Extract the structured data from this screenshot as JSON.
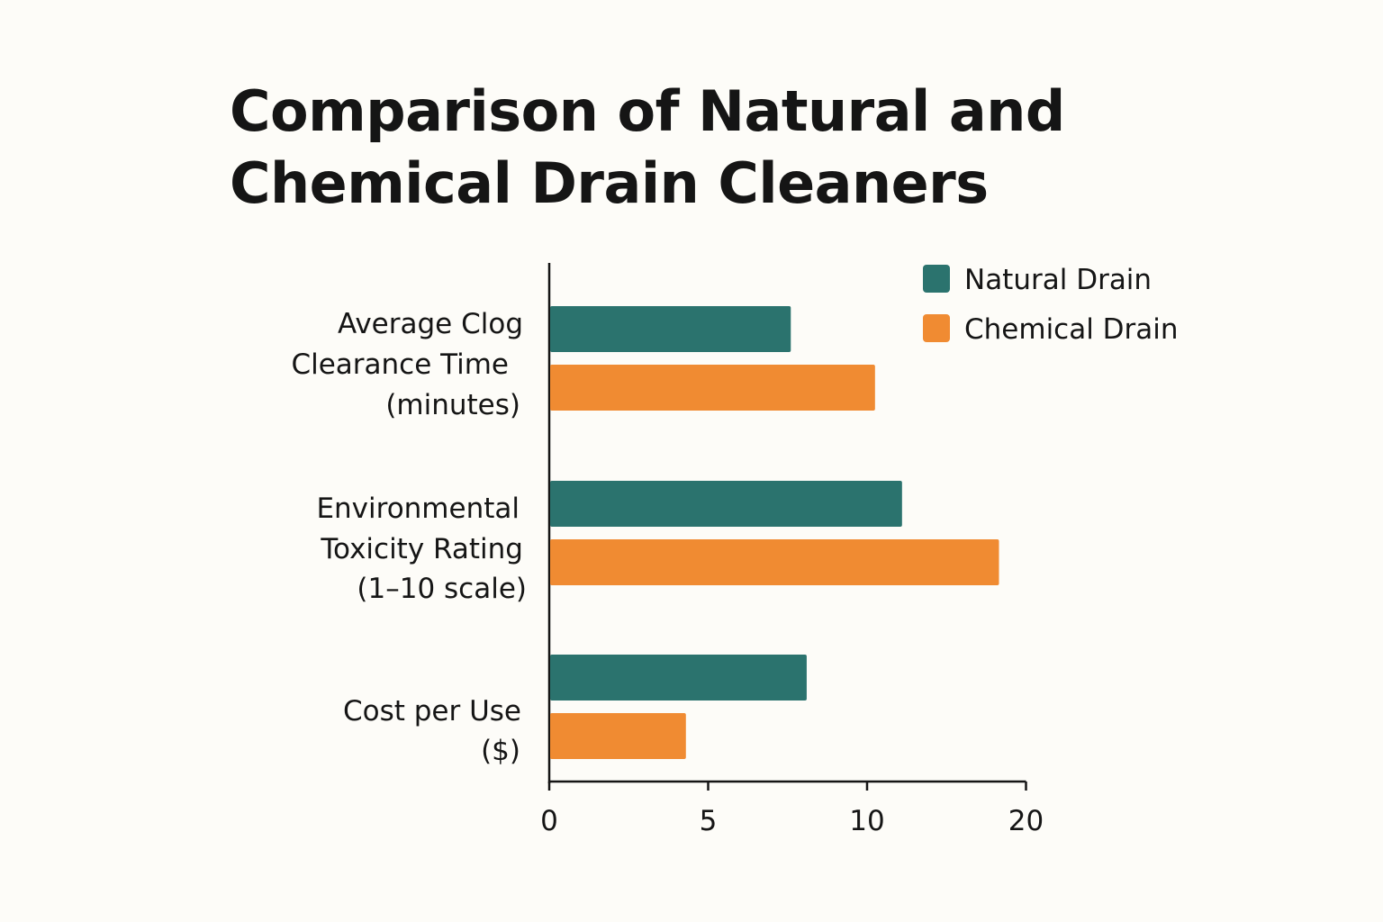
{
  "chart_data": {
    "type": "bar",
    "orientation": "horizontal",
    "title": "Comparison of Natural and Chemical Drain Cleaners",
    "categories": [
      [
        "Average Clog",
        "Clearance Time",
        "(minutes)"
      ],
      [
        "Environmental",
        "Toxicity Rating",
        "(1–10 scale)"
      ],
      [
        "Cost per Use",
        "($)"
      ]
    ],
    "series": [
      {
        "name": "Natural Drain",
        "color": "#2b736e",
        "values": [
          7.6,
          12.2,
          8.1
        ]
      },
      {
        "name": "Chemical Drain",
        "color": "#f08b32",
        "values": [
          10.5,
          18.3,
          4.3
        ]
      }
    ],
    "x_ticks": [
      0,
      5,
      10,
      20
    ],
    "xlim": [
      0,
      20
    ],
    "legend_position": "top-right",
    "grid": false
  }
}
